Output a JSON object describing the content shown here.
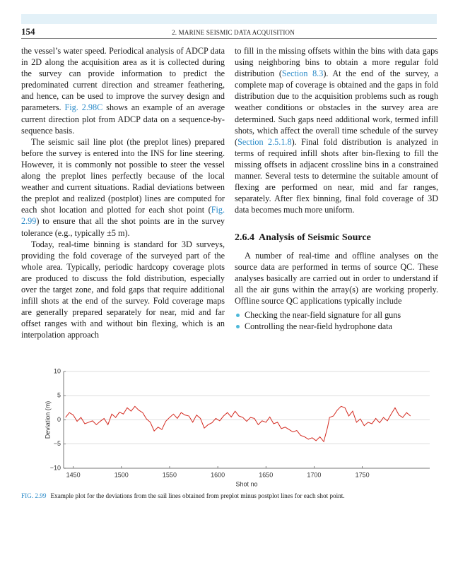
{
  "header": {
    "page_number": "154",
    "running_title": "2. MARINE SEISMIC DATA ACQUISITION"
  },
  "left_column": {
    "paragraphs": [
      {
        "runs": [
          "the vessel’s water speed. Periodical analysis of ADCP data in 2D along the acquisition area as it is collected during the survey can provide information to predict the predominated current direction and streamer feathering, and hence, can be used to improve the survey design and parameters. ",
          {
            "text": "Fig. 2.98C",
            "link": true
          },
          " shows an example of an average current direction plot from ADCP data on a sequence-by-sequence basis."
        ]
      },
      {
        "runs": [
          "The seismic sail line plot (the preplot lines) prepared before the survey is entered into the INS for line steering. However, it is commonly not possible to steer the vessel along the preplot lines perfectly because of the local weather and current situations. Radial deviations between the preplot and realized (postplot) lines are computed for each shot location and plotted for each shot point (",
          {
            "text": "Fig. 2.99",
            "link": true
          },
          ") to ensure that all the shot points are in the survey tolerance (e.g., typically ±5 m)."
        ]
      },
      {
        "runs": [
          "Today, real-time binning is standard for 3D surveys, providing the fold coverage of the surveyed part of the whole area. Typically, periodic hardcopy coverage plots are produced to discuss the fold distribution, especially over the target zone, and fold gaps that require additional infill shots at the end of the survey. Fold coverage maps are generally prepared separately for near, mid and far offset ranges with and without bin flexing, which is an interpolation approach"
        ]
      }
    ]
  },
  "right_column": {
    "paragraphs": [
      {
        "runs": [
          "to fill in the missing offsets within the bins with data gaps using neighboring bins to obtain a more regular fold distribution (",
          {
            "text": "Section 8.3",
            "link": true
          },
          "). At the end of the survey, a complete map of coverage is obtained and the gaps in fold distribution due to the acquisition problems such as rough weather conditions or obstacles in the survey area are determined. Such gaps need additional work, termed infill shots, which affect the overall time schedule of the survey (",
          {
            "text": "Section 2.5.1.8",
            "link": true
          },
          "). Final fold distribution is analyzed in terms of required infill shots after bin-flexing to fill the missing offsets in adjacent crossline bins in a constrained manner. Several tests to determine the suitable amount of flexing are performed on near, mid and far ranges, separately. After flex binning, final fold coverage of 3D data becomes much more uniform."
        ]
      }
    ],
    "section": {
      "number": "2.6.4",
      "title": "Analysis of Seismic Source",
      "paragraphs": [
        {
          "runs": [
            "A number of real-time and offline analyses on the source data are performed in terms of source QC. These analyses basically are carried out in order to understand if all the air guns within the array(s) are working properly. Offline source QC applications typically include"
          ]
        }
      ],
      "bullets": [
        "Checking the near-field signature for all guns",
        "Controlling the near-field hydrophone data"
      ]
    }
  },
  "chart_data": {
    "type": "line",
    "x_label": "Shot no",
    "y_label": "Deviation (m)",
    "color": "#d42a20",
    "x": [
      1442,
      1446,
      1450,
      1454,
      1458,
      1462,
      1466,
      1470,
      1474,
      1478,
      1482,
      1486,
      1490,
      1494,
      1498,
      1502,
      1506,
      1510,
      1514,
      1518,
      1522,
      1526,
      1530,
      1534,
      1538,
      1542,
      1546,
      1550,
      1554,
      1558,
      1562,
      1566,
      1570,
      1574,
      1578,
      1582,
      1586,
      1590,
      1594,
      1598,
      1602,
      1606,
      1610,
      1614,
      1618,
      1622,
      1626,
      1630,
      1634,
      1638,
      1642,
      1646,
      1650,
      1654,
      1658,
      1662,
      1666,
      1670,
      1674,
      1678,
      1682,
      1686,
      1690,
      1694,
      1698,
      1702,
      1706,
      1710,
      1714,
      1716,
      1720,
      1724,
      1728,
      1732,
      1736,
      1740,
      1744,
      1748,
      1752,
      1756,
      1760,
      1764,
      1768,
      1772,
      1776,
      1780,
      1784,
      1788,
      1792,
      1796,
      1800
    ],
    "values": [
      0.5,
      1.5,
      1.0,
      -0.3,
      0.5,
      -0.8,
      -0.5,
      -0.2,
      -1.0,
      -0.3,
      0.3,
      -1.0,
      1.2,
      0.5,
      1.6,
      1.2,
      2.5,
      1.8,
      2.8,
      2.0,
      1.5,
      0.2,
      -0.5,
      -2.3,
      -1.5,
      -2.0,
      -0.3,
      0.5,
      1.2,
      0.3,
      1.5,
      1.0,
      0.8,
      -0.5,
      1.0,
      0.3,
      -1.7,
      -1.0,
      -0.6,
      0.3,
      -0.2,
      0.8,
      1.5,
      0.6,
      1.8,
      0.8,
      0.5,
      -0.3,
      0.5,
      0.3,
      -1.0,
      -0.2,
      -0.5,
      0.6,
      -0.8,
      -0.5,
      -1.8,
      -1.5,
      -2.0,
      -2.5,
      -2.2,
      -3.2,
      -3.5,
      -4.0,
      -3.7,
      -4.3,
      -3.5,
      -4.5,
      -1.5,
      0.5,
      0.8,
      2.0,
      2.8,
      2.5,
      0.8,
      1.8,
      -0.5,
      0.2,
      -1.2,
      -0.5,
      -0.8,
      0.3,
      -0.6,
      0.5,
      -0.2,
      1.2,
      2.5,
      1.0,
      0.5,
      1.5,
      0.8
    ],
    "xlim": [
      1440,
      1820
    ],
    "ylim": [
      -10,
      10
    ],
    "xticks": [
      1450,
      1500,
      1550,
      1600,
      1650,
      1700,
      1750
    ],
    "yticks": [
      10,
      5,
      0,
      {
        "value": -5,
        "label": "−5"
      },
      {
        "value": -10,
        "label": "−10"
      }
    ],
    "grid": true
  },
  "caption": {
    "label": "FIG. 2.99",
    "text": "Example plot for the deviations from the sail lines obtained from preplot minus postplot lines for each shot point."
  }
}
